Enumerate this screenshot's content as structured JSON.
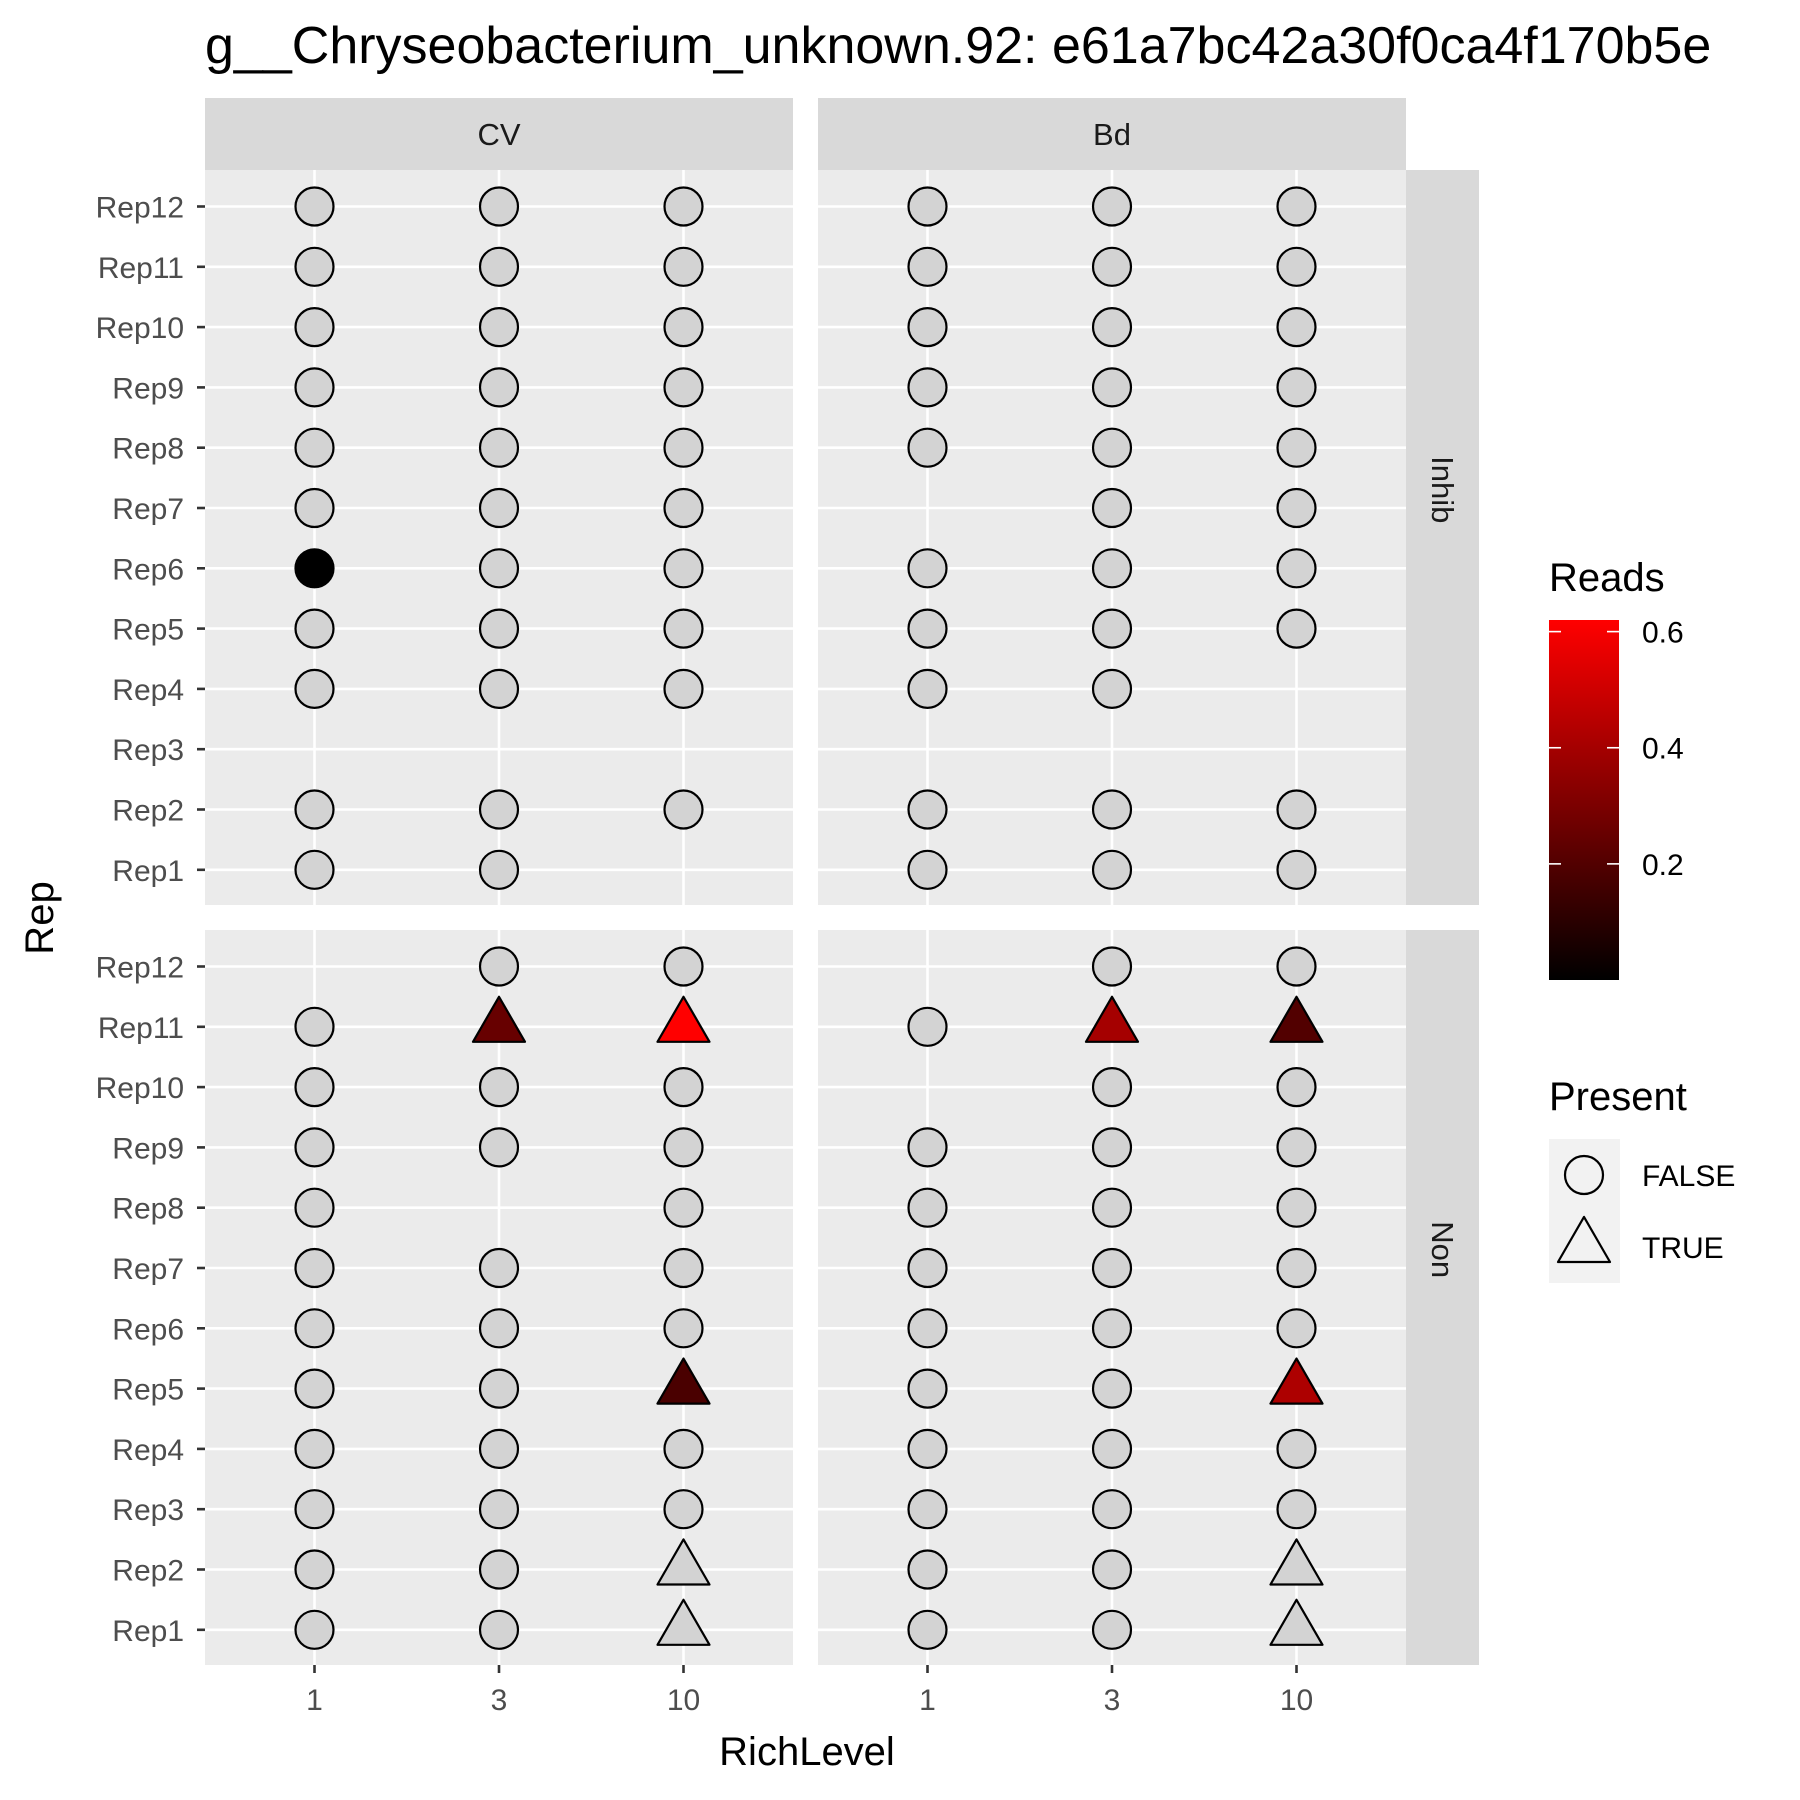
{
  "chart_data": {
    "type": "scatter",
    "title": "g__Chryseobacterium_unknown.92: e61a7bc42a30f0ca4f170b5e",
    "xlabel": "RichLevel",
    "ylabel": "Rep",
    "x_categories": [
      "1",
      "3",
      "10"
    ],
    "y_categories": [
      "Rep1",
      "Rep2",
      "Rep3",
      "Rep4",
      "Rep5",
      "Rep6",
      "Rep7",
      "Rep8",
      "Rep9",
      "Rep10",
      "Rep11",
      "Rep12"
    ],
    "facet_cols": [
      "CV",
      "Bd"
    ],
    "facet_rows": [
      "Inhib",
      "Non"
    ],
    "grid": true,
    "colors": {
      "panel_bg": "#ebebeb",
      "grid": "#ffffff",
      "strip_bg": "#d9d9d9",
      "absent_fill": "#d3d3d3",
      "scale_low": "#000000",
      "scale_high": "#ff0000",
      "outline": "#000000"
    },
    "legends": {
      "color": {
        "title": "Reads",
        "breaks": [
          0.2,
          0.4,
          0.6
        ],
        "min": 0.0,
        "max": 0.62,
        "position": "right"
      },
      "shape": {
        "title": "Present",
        "entries": [
          {
            "label": "FALSE",
            "shape": "circle"
          },
          {
            "label": "TRUE",
            "shape": "triangle"
          }
        ],
        "position": "right"
      }
    },
    "panels": [
      {
        "col": "CV",
        "row": "Inhib",
        "points": [
          {
            "x": "1",
            "rep": "Rep12",
            "present": false,
            "reads": null
          },
          {
            "x": "3",
            "rep": "Rep12",
            "present": false,
            "reads": null
          },
          {
            "x": "10",
            "rep": "Rep12",
            "present": false,
            "reads": null
          },
          {
            "x": "1",
            "rep": "Rep11",
            "present": false,
            "reads": null
          },
          {
            "x": "3",
            "rep": "Rep11",
            "present": false,
            "reads": null
          },
          {
            "x": "10",
            "rep": "Rep11",
            "present": false,
            "reads": null
          },
          {
            "x": "1",
            "rep": "Rep10",
            "present": false,
            "reads": null
          },
          {
            "x": "3",
            "rep": "Rep10",
            "present": false,
            "reads": null
          },
          {
            "x": "10",
            "rep": "Rep10",
            "present": false,
            "reads": null
          },
          {
            "x": "1",
            "rep": "Rep9",
            "present": false,
            "reads": null
          },
          {
            "x": "3",
            "rep": "Rep9",
            "present": false,
            "reads": null
          },
          {
            "x": "10",
            "rep": "Rep9",
            "present": false,
            "reads": null
          },
          {
            "x": "1",
            "rep": "Rep8",
            "present": false,
            "reads": null
          },
          {
            "x": "3",
            "rep": "Rep8",
            "present": false,
            "reads": null
          },
          {
            "x": "10",
            "rep": "Rep8",
            "present": false,
            "reads": null
          },
          {
            "x": "1",
            "rep": "Rep7",
            "present": false,
            "reads": null
          },
          {
            "x": "3",
            "rep": "Rep7",
            "present": false,
            "reads": null
          },
          {
            "x": "10",
            "rep": "Rep7",
            "present": false,
            "reads": null
          },
          {
            "x": "1",
            "rep": "Rep6",
            "present": false,
            "reads": 0.0
          },
          {
            "x": "3",
            "rep": "Rep6",
            "present": false,
            "reads": null
          },
          {
            "x": "10",
            "rep": "Rep6",
            "present": false,
            "reads": null
          },
          {
            "x": "1",
            "rep": "Rep5",
            "present": false,
            "reads": null
          },
          {
            "x": "3",
            "rep": "Rep5",
            "present": false,
            "reads": null
          },
          {
            "x": "10",
            "rep": "Rep5",
            "present": false,
            "reads": null
          },
          {
            "x": "1",
            "rep": "Rep4",
            "present": false,
            "reads": null
          },
          {
            "x": "3",
            "rep": "Rep4",
            "present": false,
            "reads": null
          },
          {
            "x": "10",
            "rep": "Rep4",
            "present": false,
            "reads": null
          },
          {
            "x": "1",
            "rep": "Rep2",
            "present": false,
            "reads": null
          },
          {
            "x": "3",
            "rep": "Rep2",
            "present": false,
            "reads": null
          },
          {
            "x": "10",
            "rep": "Rep2",
            "present": false,
            "reads": null
          },
          {
            "x": "1",
            "rep": "Rep1",
            "present": false,
            "reads": null
          },
          {
            "x": "3",
            "rep": "Rep1",
            "present": false,
            "reads": null
          }
        ]
      },
      {
        "col": "Bd",
        "row": "Inhib",
        "points": [
          {
            "x": "1",
            "rep": "Rep12",
            "present": false,
            "reads": null
          },
          {
            "x": "3",
            "rep": "Rep12",
            "present": false,
            "reads": null
          },
          {
            "x": "10",
            "rep": "Rep12",
            "present": false,
            "reads": null
          },
          {
            "x": "1",
            "rep": "Rep11",
            "present": false,
            "reads": null
          },
          {
            "x": "3",
            "rep": "Rep11",
            "present": false,
            "reads": null
          },
          {
            "x": "10",
            "rep": "Rep11",
            "present": false,
            "reads": null
          },
          {
            "x": "1",
            "rep": "Rep10",
            "present": false,
            "reads": null
          },
          {
            "x": "3",
            "rep": "Rep10",
            "present": false,
            "reads": null
          },
          {
            "x": "10",
            "rep": "Rep10",
            "present": false,
            "reads": null
          },
          {
            "x": "1",
            "rep": "Rep9",
            "present": false,
            "reads": null
          },
          {
            "x": "3",
            "rep": "Rep9",
            "present": false,
            "reads": null
          },
          {
            "x": "10",
            "rep": "Rep9",
            "present": false,
            "reads": null
          },
          {
            "x": "1",
            "rep": "Rep8",
            "present": false,
            "reads": null
          },
          {
            "x": "3",
            "rep": "Rep8",
            "present": false,
            "reads": null
          },
          {
            "x": "10",
            "rep": "Rep8",
            "present": false,
            "reads": null
          },
          {
            "x": "3",
            "rep": "Rep7",
            "present": false,
            "reads": null
          },
          {
            "x": "10",
            "rep": "Rep7",
            "present": false,
            "reads": null
          },
          {
            "x": "1",
            "rep": "Rep6",
            "present": false,
            "reads": null
          },
          {
            "x": "3",
            "rep": "Rep6",
            "present": false,
            "reads": null
          },
          {
            "x": "10",
            "rep": "Rep6",
            "present": false,
            "reads": null
          },
          {
            "x": "1",
            "rep": "Rep5",
            "present": false,
            "reads": null
          },
          {
            "x": "3",
            "rep": "Rep5",
            "present": false,
            "reads": null
          },
          {
            "x": "10",
            "rep": "Rep5",
            "present": false,
            "reads": null
          },
          {
            "x": "1",
            "rep": "Rep4",
            "present": false,
            "reads": null
          },
          {
            "x": "3",
            "rep": "Rep4",
            "present": false,
            "reads": null
          },
          {
            "x": "1",
            "rep": "Rep2",
            "present": false,
            "reads": null
          },
          {
            "x": "3",
            "rep": "Rep2",
            "present": false,
            "reads": null
          },
          {
            "x": "10",
            "rep": "Rep2",
            "present": false,
            "reads": null
          },
          {
            "x": "1",
            "rep": "Rep1",
            "present": false,
            "reads": null
          },
          {
            "x": "3",
            "rep": "Rep1",
            "present": false,
            "reads": null
          },
          {
            "x": "10",
            "rep": "Rep1",
            "present": false,
            "reads": null
          }
        ]
      },
      {
        "col": "CV",
        "row": "Non",
        "points": [
          {
            "x": "3",
            "rep": "Rep12",
            "present": false,
            "reads": null
          },
          {
            "x": "10",
            "rep": "Rep12",
            "present": false,
            "reads": null
          },
          {
            "x": "1",
            "rep": "Rep11",
            "present": false,
            "reads": null
          },
          {
            "x": "3",
            "rep": "Rep11",
            "present": true,
            "reads": 0.25
          },
          {
            "x": "10",
            "rep": "Rep11",
            "present": true,
            "reads": 0.62
          },
          {
            "x": "1",
            "rep": "Rep10",
            "present": false,
            "reads": null
          },
          {
            "x": "3",
            "rep": "Rep10",
            "present": false,
            "reads": null
          },
          {
            "x": "10",
            "rep": "Rep10",
            "present": false,
            "reads": null
          },
          {
            "x": "1",
            "rep": "Rep9",
            "present": false,
            "reads": null
          },
          {
            "x": "3",
            "rep": "Rep9",
            "present": false,
            "reads": null
          },
          {
            "x": "10",
            "rep": "Rep9",
            "present": false,
            "reads": null
          },
          {
            "x": "1",
            "rep": "Rep8",
            "present": false,
            "reads": null
          },
          {
            "x": "10",
            "rep": "Rep8",
            "present": false,
            "reads": null
          },
          {
            "x": "1",
            "rep": "Rep7",
            "present": false,
            "reads": null
          },
          {
            "x": "3",
            "rep": "Rep7",
            "present": false,
            "reads": null
          },
          {
            "x": "10",
            "rep": "Rep7",
            "present": false,
            "reads": null
          },
          {
            "x": "1",
            "rep": "Rep6",
            "present": false,
            "reads": null
          },
          {
            "x": "3",
            "rep": "Rep6",
            "present": false,
            "reads": null
          },
          {
            "x": "10",
            "rep": "Rep6",
            "present": false,
            "reads": null
          },
          {
            "x": "1",
            "rep": "Rep5",
            "present": false,
            "reads": null
          },
          {
            "x": "3",
            "rep": "Rep5",
            "present": false,
            "reads": null
          },
          {
            "x": "10",
            "rep": "Rep5",
            "present": true,
            "reads": 0.18
          },
          {
            "x": "1",
            "rep": "Rep4",
            "present": false,
            "reads": null
          },
          {
            "x": "3",
            "rep": "Rep4",
            "present": false,
            "reads": null
          },
          {
            "x": "10",
            "rep": "Rep4",
            "present": false,
            "reads": null
          },
          {
            "x": "1",
            "rep": "Rep3",
            "present": false,
            "reads": null
          },
          {
            "x": "3",
            "rep": "Rep3",
            "present": false,
            "reads": null
          },
          {
            "x": "10",
            "rep": "Rep3",
            "present": false,
            "reads": null
          },
          {
            "x": "1",
            "rep": "Rep2",
            "present": false,
            "reads": null
          },
          {
            "x": "3",
            "rep": "Rep2",
            "present": false,
            "reads": null
          },
          {
            "x": "10",
            "rep": "Rep2",
            "present": true,
            "reads": null
          },
          {
            "x": "1",
            "rep": "Rep1",
            "present": false,
            "reads": null
          },
          {
            "x": "3",
            "rep": "Rep1",
            "present": false,
            "reads": null
          },
          {
            "x": "10",
            "rep": "Rep1",
            "present": true,
            "reads": null
          }
        ]
      },
      {
        "col": "Bd",
        "row": "Non",
        "points": [
          {
            "x": "3",
            "rep": "Rep12",
            "present": false,
            "reads": null
          },
          {
            "x": "10",
            "rep": "Rep12",
            "present": false,
            "reads": null
          },
          {
            "x": "1",
            "rep": "Rep11",
            "present": false,
            "reads": null
          },
          {
            "x": "3",
            "rep": "Rep11",
            "present": true,
            "reads": 0.4
          },
          {
            "x": "10",
            "rep": "Rep11",
            "present": true,
            "reads": 0.2
          },
          {
            "x": "3",
            "rep": "Rep10",
            "present": false,
            "reads": null
          },
          {
            "x": "10",
            "rep": "Rep10",
            "present": false,
            "reads": null
          },
          {
            "x": "1",
            "rep": "Rep9",
            "present": false,
            "reads": null
          },
          {
            "x": "3",
            "rep": "Rep9",
            "present": false,
            "reads": null
          },
          {
            "x": "10",
            "rep": "Rep9",
            "present": false,
            "reads": null
          },
          {
            "x": "1",
            "rep": "Rep8",
            "present": false,
            "reads": null
          },
          {
            "x": "3",
            "rep": "Rep8",
            "present": false,
            "reads": null
          },
          {
            "x": "10",
            "rep": "Rep8",
            "present": false,
            "reads": null
          },
          {
            "x": "1",
            "rep": "Rep7",
            "present": false,
            "reads": null
          },
          {
            "x": "3",
            "rep": "Rep7",
            "present": false,
            "reads": null
          },
          {
            "x": "10",
            "rep": "Rep7",
            "present": false,
            "reads": null
          },
          {
            "x": "1",
            "rep": "Rep6",
            "present": false,
            "reads": null
          },
          {
            "x": "3",
            "rep": "Rep6",
            "present": false,
            "reads": null
          },
          {
            "x": "10",
            "rep": "Rep6",
            "present": false,
            "reads": null
          },
          {
            "x": "1",
            "rep": "Rep5",
            "present": false,
            "reads": null
          },
          {
            "x": "3",
            "rep": "Rep5",
            "present": false,
            "reads": null
          },
          {
            "x": "10",
            "rep": "Rep5",
            "present": true,
            "reads": 0.42
          },
          {
            "x": "1",
            "rep": "Rep4",
            "present": false,
            "reads": null
          },
          {
            "x": "3",
            "rep": "Rep4",
            "present": false,
            "reads": null
          },
          {
            "x": "10",
            "rep": "Rep4",
            "present": false,
            "reads": null
          },
          {
            "x": "1",
            "rep": "Rep3",
            "present": false,
            "reads": null
          },
          {
            "x": "3",
            "rep": "Rep3",
            "present": false,
            "reads": null
          },
          {
            "x": "10",
            "rep": "Rep3",
            "present": false,
            "reads": null
          },
          {
            "x": "1",
            "rep": "Rep2",
            "present": false,
            "reads": null
          },
          {
            "x": "3",
            "rep": "Rep2",
            "present": false,
            "reads": null
          },
          {
            "x": "10",
            "rep": "Rep2",
            "present": true,
            "reads": null
          },
          {
            "x": "1",
            "rep": "Rep1",
            "present": false,
            "reads": null
          },
          {
            "x": "3",
            "rep": "Rep1",
            "present": false,
            "reads": null
          },
          {
            "x": "10",
            "rep": "Rep1",
            "present": true,
            "reads": null
          }
        ]
      }
    ]
  }
}
